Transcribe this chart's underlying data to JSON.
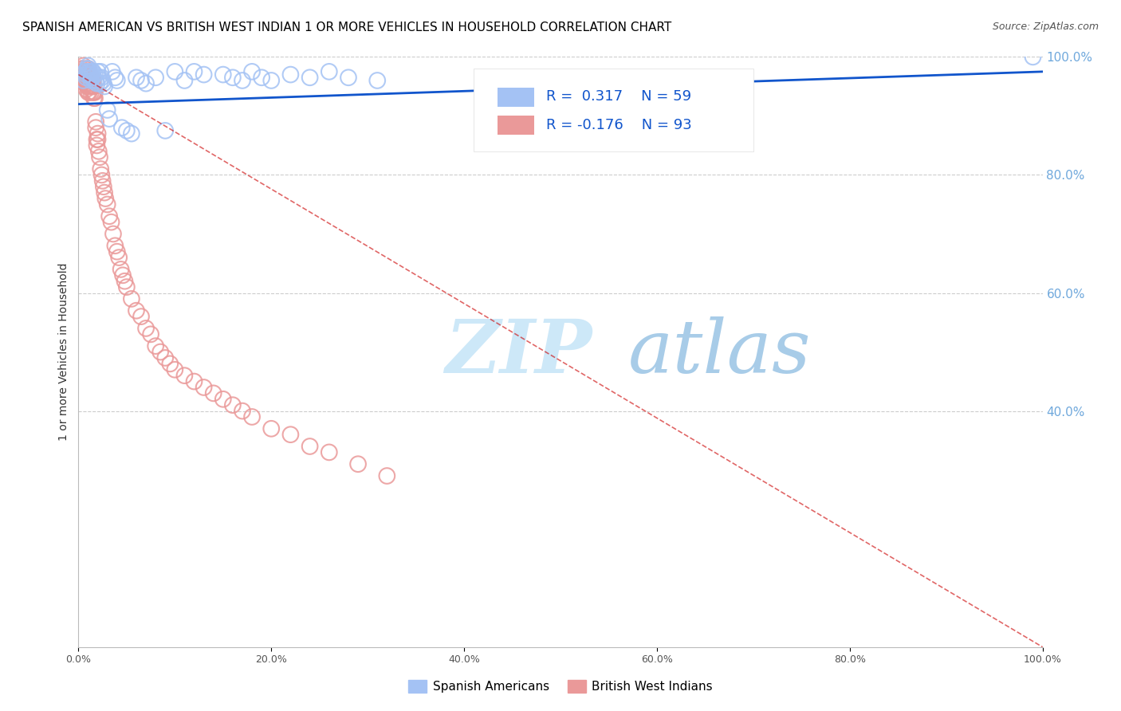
{
  "title": "SPANISH AMERICAN VS BRITISH WEST INDIAN 1 OR MORE VEHICLES IN HOUSEHOLD CORRELATION CHART",
  "source": "Source: ZipAtlas.com",
  "ylabel": "1 or more Vehicles in Household",
  "r_blue": 0.317,
  "n_blue": 59,
  "r_pink": -0.176,
  "n_pink": 93,
  "blue_color": "#a4c2f4",
  "pink_color": "#ea9999",
  "trendline_blue_color": "#1155cc",
  "trendline_pink_color": "#cc0000",
  "legend_text_color": "#1155cc",
  "watermark_zip_color": "#cfe2f3",
  "watermark_atlas_color": "#a0c4e8",
  "grid_color": "#cccccc",
  "background_color": "#ffffff",
  "right_tick_color": "#6fa8dc",
  "blue_scatter_x": [
    0.005,
    0.007,
    0.008,
    0.008,
    0.009,
    0.01,
    0.01,
    0.01,
    0.011,
    0.011,
    0.012,
    0.012,
    0.013,
    0.013,
    0.014,
    0.014,
    0.015,
    0.015,
    0.016,
    0.017,
    0.018,
    0.019,
    0.02,
    0.021,
    0.022,
    0.023,
    0.024,
    0.025,
    0.026,
    0.027,
    0.03,
    0.032,
    0.035,
    0.038,
    0.04,
    0.045,
    0.05,
    0.055,
    0.06,
    0.065,
    0.07,
    0.08,
    0.09,
    0.1,
    0.11,
    0.12,
    0.13,
    0.15,
    0.16,
    0.17,
    0.18,
    0.19,
    0.2,
    0.22,
    0.24,
    0.26,
    0.28,
    0.31,
    0.99
  ],
  "blue_scatter_y": [
    0.96,
    0.975,
    0.97,
    0.965,
    0.98,
    0.985,
    0.98,
    0.975,
    0.975,
    0.97,
    0.975,
    0.97,
    0.965,
    0.96,
    0.975,
    0.97,
    0.975,
    0.965,
    0.96,
    0.97,
    0.96,
    0.955,
    0.975,
    0.965,
    0.955,
    0.975,
    0.965,
    0.96,
    0.955,
    0.95,
    0.91,
    0.895,
    0.975,
    0.965,
    0.96,
    0.88,
    0.875,
    0.87,
    0.965,
    0.96,
    0.955,
    0.965,
    0.875,
    0.975,
    0.96,
    0.975,
    0.97,
    0.97,
    0.965,
    0.96,
    0.975,
    0.965,
    0.96,
    0.97,
    0.965,
    0.975,
    0.965,
    0.96,
    1.0
  ],
  "pink_scatter_x": [
    0.003,
    0.004,
    0.004,
    0.005,
    0.005,
    0.005,
    0.006,
    0.006,
    0.006,
    0.007,
    0.007,
    0.007,
    0.008,
    0.008,
    0.008,
    0.008,
    0.009,
    0.009,
    0.009,
    0.01,
    0.01,
    0.01,
    0.01,
    0.01,
    0.011,
    0.011,
    0.011,
    0.011,
    0.012,
    0.012,
    0.012,
    0.013,
    0.013,
    0.013,
    0.014,
    0.014,
    0.015,
    0.015,
    0.015,
    0.016,
    0.016,
    0.016,
    0.017,
    0.017,
    0.018,
    0.018,
    0.019,
    0.019,
    0.02,
    0.02,
    0.021,
    0.022,
    0.023,
    0.024,
    0.025,
    0.026,
    0.027,
    0.028,
    0.03,
    0.032,
    0.034,
    0.036,
    0.038,
    0.04,
    0.042,
    0.044,
    0.046,
    0.048,
    0.05,
    0.055,
    0.06,
    0.065,
    0.07,
    0.075,
    0.08,
    0.085,
    0.09,
    0.095,
    0.1,
    0.11,
    0.12,
    0.13,
    0.14,
    0.15,
    0.16,
    0.17,
    0.18,
    0.2,
    0.22,
    0.24,
    0.26,
    0.29,
    0.32
  ],
  "pink_scatter_y": [
    0.98,
    0.975,
    0.97,
    0.985,
    0.975,
    0.965,
    0.98,
    0.97,
    0.96,
    0.975,
    0.965,
    0.955,
    0.975,
    0.965,
    0.955,
    0.945,
    0.975,
    0.96,
    0.95,
    0.98,
    0.97,
    0.96,
    0.95,
    0.94,
    0.97,
    0.96,
    0.95,
    0.94,
    0.97,
    0.96,
    0.95,
    0.96,
    0.95,
    0.94,
    0.96,
    0.95,
    0.96,
    0.95,
    0.94,
    0.95,
    0.94,
    0.93,
    0.94,
    0.93,
    0.89,
    0.88,
    0.86,
    0.85,
    0.87,
    0.86,
    0.84,
    0.83,
    0.81,
    0.8,
    0.79,
    0.78,
    0.77,
    0.76,
    0.75,
    0.73,
    0.72,
    0.7,
    0.68,
    0.67,
    0.66,
    0.64,
    0.63,
    0.62,
    0.61,
    0.59,
    0.57,
    0.56,
    0.54,
    0.53,
    0.51,
    0.5,
    0.49,
    0.48,
    0.47,
    0.46,
    0.45,
    0.44,
    0.43,
    0.42,
    0.41,
    0.4,
    0.39,
    0.37,
    0.36,
    0.34,
    0.33,
    0.31,
    0.29
  ],
  "blue_trend_x": [
    0.0,
    1.0
  ],
  "blue_trend_y": [
    0.92,
    0.975
  ],
  "pink_trend_x": [
    0.0,
    1.0
  ],
  "pink_trend_y": [
    0.97,
    0.0
  ],
  "xlim": [
    0.0,
    1.0
  ],
  "ylim": [
    0.0,
    1.0
  ],
  "xtick_positions": [
    0.0,
    0.2,
    0.4,
    0.6,
    0.8,
    1.0
  ],
  "xtick_labels": [
    "0.0%",
    "20.0%",
    "40.0%",
    "60.0%",
    "80.0%",
    "100.0%"
  ],
  "right_ytick_positions": [
    0.4,
    0.6,
    0.8,
    1.0
  ],
  "right_ytick_labels": [
    "40.0%",
    "60.0%",
    "80.0%",
    "100.0%"
  ]
}
